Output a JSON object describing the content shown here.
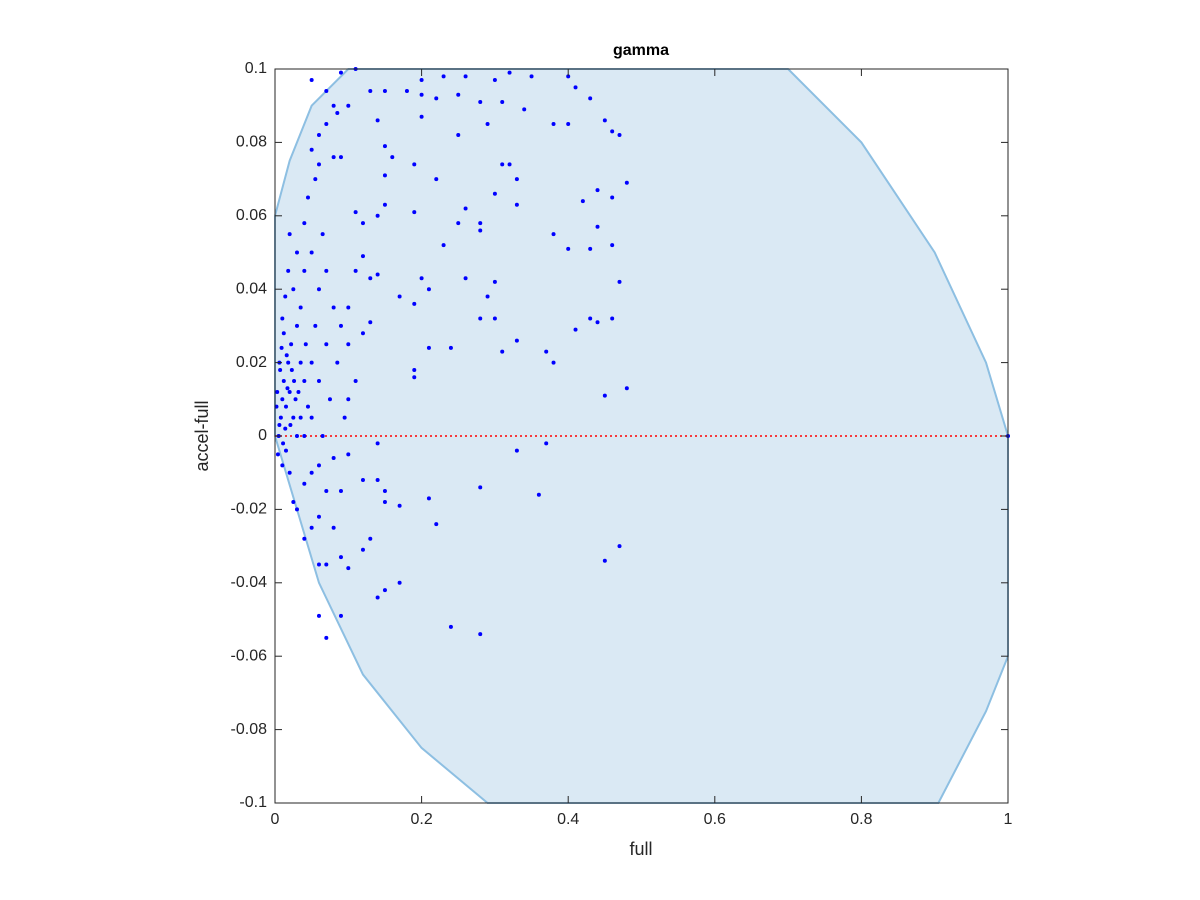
{
  "chart_data": {
    "type": "scatter",
    "title": "gamma",
    "xlabel": "full",
    "ylabel": "accel-full",
    "color": "#0000ff",
    "x": [
      0.05,
      0.07,
      0.09,
      0.11,
      0.08,
      0.085,
      0.1,
      0.13,
      0.15,
      0.18,
      0.2,
      0.2,
      0.23,
      0.26,
      0.3,
      0.32,
      0.35,
      0.4,
      0.41,
      0.43,
      0.22,
      0.25,
      0.28,
      0.31,
      0.34,
      0.2,
      0.25,
      0.29,
      0.38,
      0.4,
      0.45,
      0.46,
      0.47,
      0.07,
      0.06,
      0.05,
      0.08,
      0.09,
      0.06,
      0.14,
      0.15,
      0.16,
      0.19,
      0.22,
      0.31,
      0.32,
      0.33,
      0.3,
      0.33,
      0.28,
      0.26,
      0.25,
      0.23,
      0.28,
      0.19,
      0.15,
      0.15,
      0.11,
      0.12,
      0.14,
      0.42,
      0.44,
      0.46,
      0.48,
      0.44,
      0.46,
      0.38,
      0.4,
      0.43,
      0.47,
      0.26,
      0.3,
      0.29,
      0.2,
      0.21,
      0.17,
      0.19,
      0.28,
      0.3,
      0.33,
      0.41,
      0.43,
      0.44,
      0.46,
      0.24,
      0.31,
      0.37,
      0.38,
      0.48,
      0.45,
      0.19,
      0.19,
      0.21,
      0.12,
      0.14,
      0.11,
      0.13,
      0.13,
      0.12,
      0.1,
      0.33,
      0.37,
      0.36,
      0.28,
      0.21,
      0.22,
      0.17,
      0.15,
      0.14,
      0.14,
      0.15,
      0.13,
      0.12,
      0.14,
      0.15,
      0.17,
      0.1,
      0.09,
      0.07,
      0.06,
      0.08,
      0.06,
      0.05,
      0.04,
      0.06,
      0.07,
      0.09,
      0.24,
      0.28,
      0.45,
      0.47,
      0.03,
      0.025,
      0.04,
      0.05,
      0.06,
      0.08,
      0.1,
      0.12,
      0.07,
      0.09,
      0.005,
      0.008,
      0.01,
      0.012,
      0.006,
      0.015,
      0.02,
      0.018,
      0.022,
      0.025,
      0.03,
      0.004,
      0.01,
      0.015,
      0.02,
      0.012,
      0.03,
      0.035,
      0.04,
      0.045,
      0.05,
      0.055,
      0.06,
      0.04,
      0.03,
      0.02,
      0.025,
      0.035,
      0.05,
      0.065,
      0.07,
      0.08,
      0.09,
      0.085,
      0.075,
      0.065,
      0.003,
      0.007,
      0.009,
      0.014,
      0.017,
      0.023,
      0.028,
      0.032,
      0.01,
      0.014,
      0.018,
      0.04,
      0.045,
      0.055,
      0.1,
      0.11,
      0.1,
      0.095,
      0.05,
      0.04,
      0.002,
      0.006,
      0.011,
      0.016,
      0.021,
      0.026,
      0.035,
      0.042,
      0.06,
      0.07,
      1
    ],
    "values": [
      0.097,
      0.094,
      0.099,
      0.1,
      0.09,
      0.088,
      0.09,
      0.094,
      0.094,
      0.094,
      0.093,
      0.097,
      0.098,
      0.098,
      0.097,
      0.099,
      0.098,
      0.098,
      0.095,
      0.092,
      0.092,
      0.093,
      0.091,
      0.091,
      0.089,
      0.087,
      0.082,
      0.085,
      0.085,
      0.085,
      0.086,
      0.083,
      0.082,
      0.085,
      0.082,
      0.078,
      0.076,
      0.076,
      0.074,
      0.086,
      0.079,
      0.076,
      0.074,
      0.07,
      0.074,
      0.074,
      0.07,
      0.066,
      0.063,
      0.058,
      0.062,
      0.058,
      0.052,
      0.056,
      0.061,
      0.063,
      0.071,
      0.061,
      0.058,
      0.06,
      0.064,
      0.067,
      0.065,
      0.069,
      0.057,
      0.052,
      0.055,
      0.051,
      0.051,
      0.042,
      0.043,
      0.042,
      0.038,
      0.043,
      0.04,
      0.038,
      0.036,
      0.032,
      0.032,
      0.026,
      0.029,
      0.032,
      0.031,
      0.032,
      0.024,
      0.023,
      0.023,
      0.02,
      0.013,
      0.011,
      0.018,
      0.016,
      0.024,
      0.049,
      0.044,
      0.045,
      0.043,
      0.031,
      0.028,
      0.035,
      -0.004,
      -0.002,
      -0.016,
      -0.014,
      -0.017,
      -0.024,
      -0.019,
      -0.015,
      -0.012,
      -0.002,
      -0.018,
      -0.028,
      -0.031,
      -0.044,
      -0.042,
      -0.04,
      -0.036,
      -0.033,
      -0.035,
      -0.035,
      -0.025,
      -0.022,
      -0.025,
      -0.028,
      -0.049,
      -0.055,
      -0.049,
      -0.052,
      -0.054,
      -0.034,
      -0.03,
      -0.02,
      -0.018,
      -0.013,
      -0.01,
      -0.008,
      -0.006,
      -0.005,
      -0.012,
      -0.015,
      -0.015,
      0.0,
      0.005,
      0.01,
      0.015,
      0.02,
      0.008,
      0.012,
      0.02,
      0.025,
      0.005,
      0.0,
      -0.005,
      -0.008,
      -0.004,
      -0.01,
      0.028,
      0.03,
      0.02,
      0.015,
      0.008,
      0.02,
      0.03,
      0.04,
      0.045,
      0.05,
      0.055,
      0.04,
      0.035,
      0.05,
      0.055,
      0.045,
      0.035,
      0.03,
      0.02,
      0.01,
      0.0,
      0.012,
      0.018,
      0.024,
      0.002,
      0.013,
      0.018,
      0.01,
      0.012,
      0.032,
      0.038,
      0.045,
      0.058,
      0.065,
      0.07,
      0.025,
      0.015,
      0.01,
      0.005,
      0.005,
      0.0,
      0.008,
      0.003,
      -0.002,
      0.022,
      0.003,
      0.015,
      0.005,
      0.025,
      0.015,
      0.025,
      0
    ],
    "region": {
      "color": "#dae9f4",
      "edge_color": "#8dbfe2",
      "x": [
        0,
        0.02,
        0.05,
        0.1,
        0.7,
        0.8,
        0.9,
        0.97,
        1,
        1,
        0.97,
        0.905,
        0.29,
        0.2,
        0.12,
        0.06,
        0.03,
        0
      ],
      "y": [
        0.06,
        0.075,
        0.09,
        0.1,
        0.1,
        0.08,
        0.05,
        0.02,
        0,
        -0.06,
        -0.075,
        -0.1,
        -0.1,
        -0.085,
        -0.065,
        -0.04,
        -0.02,
        0
      ]
    },
    "hline": {
      "value": 0,
      "color": "#ff0000"
    },
    "xlim": [
      0,
      1
    ],
    "xticks": [
      0,
      0.2,
      0.4,
      0.6,
      0.8,
      1
    ],
    "ylim": [
      -0.1,
      0.1
    ],
    "yticks": [
      -0.1,
      -0.08,
      -0.06,
      -0.04,
      -0.02,
      0,
      0.02,
      0.04,
      0.06,
      0.08,
      0.1
    ]
  }
}
